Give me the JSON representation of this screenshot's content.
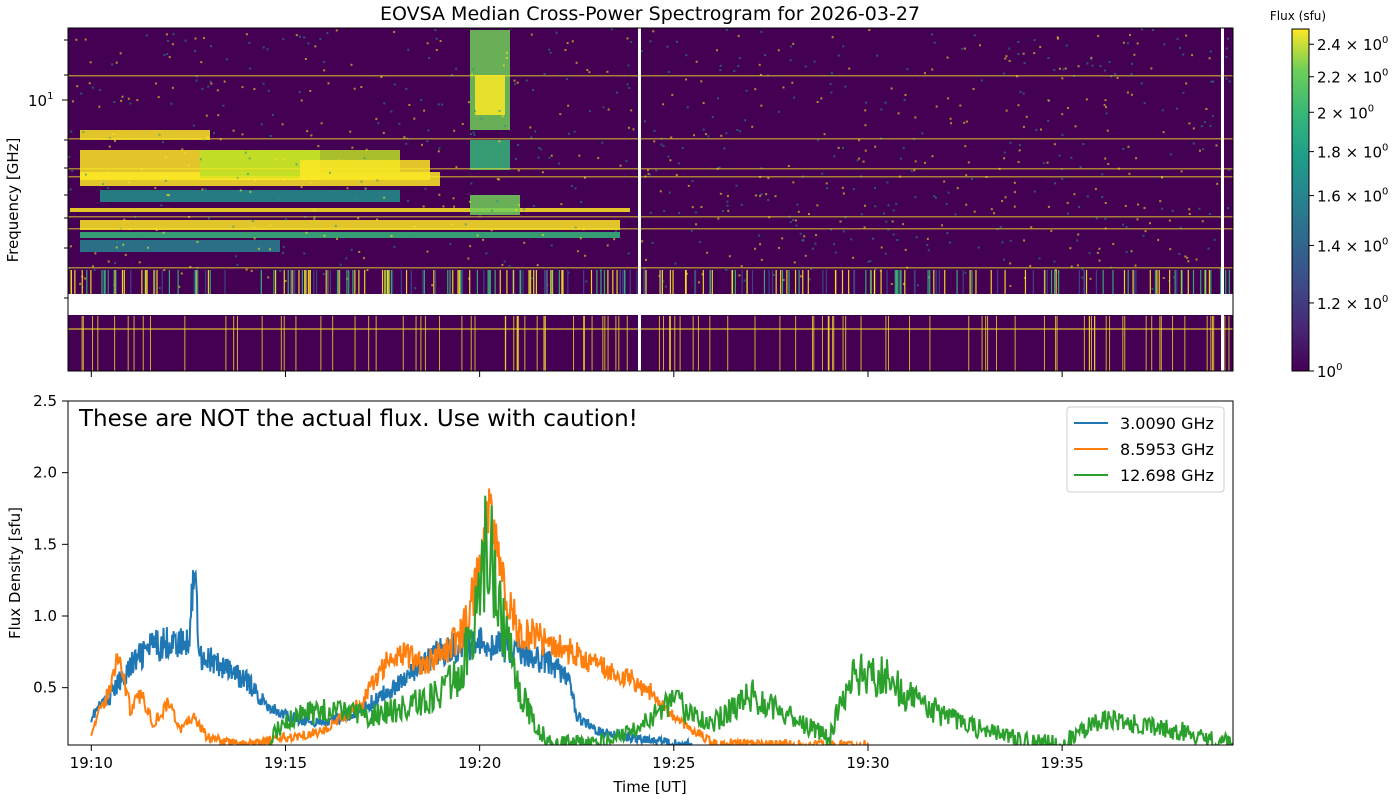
{
  "chart_data": [
    {
      "type": "heatmap",
      "title": "EOVSA Median Cross-Power Spectrogram for 2026-03-27",
      "xlabel": "",
      "ylabel": "Frequency [GHz]",
      "y_scale": "log",
      "y_tick_labels": [
        {
          "base": "10",
          "exp": "1",
          "value": 10
        }
      ],
      "x_ticks_unlabeled": [
        "19:10",
        "19:15",
        "19:20",
        "19:25",
        "19:30",
        "19:35"
      ],
      "colormap": "viridis",
      "colorbar": {
        "label": "Flux (sfu)",
        "scale": "log",
        "range": [
          1.0,
          2.5
        ],
        "ticks": [
          {
            "mant": "",
            "exp": "0",
            "value": 1.0
          },
          {
            "mant": "1.2",
            "exp": "0",
            "value": 1.2
          },
          {
            "mant": "1.4",
            "exp": "0",
            "value": 1.4
          },
          {
            "mant": "1.6",
            "exp": "0",
            "value": 1.6
          },
          {
            "mant": "1.8",
            "exp": "0",
            "value": 1.8
          },
          {
            "mant": "2",
            "exp": "0",
            "value": 2.0
          },
          {
            "mant": "2.2",
            "exp": "0",
            "value": 2.2
          },
          {
            "mant": "2.4",
            "exp": "0",
            "value": 2.4
          }
        ]
      }
    },
    {
      "type": "line",
      "xlabel": "Time [UT]",
      "ylabel": "Flux Density [sfu]",
      "annotation": "These are NOT the actual flux. Use with caution!",
      "x_tick_labels": [
        "19:10",
        "19:15",
        "19:20",
        "19:25",
        "19:30",
        "19:35"
      ],
      "x_range_minutes": [
        -0.6,
        29.4
      ],
      "ylim": [
        0.1,
        2.5
      ],
      "y_ticks": [
        "0.5",
        "1.0",
        "1.5",
        "2.0",
        "2.5"
      ],
      "legend_position": "top-right",
      "series": [
        {
          "name": "3.0090 GHz",
          "color": "#1f77b4",
          "t": [
            0,
            0.5,
            1,
            1.5,
            2,
            2.5,
            2.65,
            2.8,
            3,
            3.5,
            4,
            4.5,
            5,
            6,
            7,
            8,
            9,
            10,
            11,
            12,
            12.3,
            12.5,
            13,
            14,
            15,
            15.2,
            15.5
          ],
          "y": [
            0.3,
            0.45,
            0.65,
            0.78,
            0.82,
            0.8,
            1.36,
            0.72,
            0.7,
            0.62,
            0.55,
            0.38,
            0.3,
            0.25,
            0.35,
            0.55,
            0.75,
            0.82,
            0.75,
            0.65,
            0.55,
            0.3,
            0.2,
            0.15,
            0.12,
            0.1,
            0.1
          ]
        },
        {
          "name": "8.5953 GHz",
          "color": "#ff7f0e",
          "t": [
            0,
            0.5,
            0.7,
            1,
            1.3,
            1.6,
            2,
            2.3,
            2.6,
            3,
            3.5,
            4,
            5,
            6,
            7,
            7.5,
            8,
            8.5,
            9,
            9.5,
            10,
            10.2,
            10.4,
            10.6,
            10.8,
            11,
            11.5,
            12,
            12.5,
            13,
            13.5,
            14,
            14.5,
            15,
            15.5,
            16,
            17,
            18,
            20
          ],
          "y": [
            0.2,
            0.5,
            0.75,
            0.35,
            0.45,
            0.25,
            0.4,
            0.2,
            0.3,
            0.15,
            0.12,
            0.1,
            0.15,
            0.2,
            0.4,
            0.65,
            0.75,
            0.68,
            0.72,
            0.85,
            1.3,
            1.75,
            1.5,
            1.25,
            1.05,
            0.9,
            0.85,
            0.8,
            0.72,
            0.65,
            0.6,
            0.55,
            0.45,
            0.3,
            0.2,
            0.12,
            0.1,
            0.1,
            0.1
          ]
        },
        {
          "name": "12.698 GHz",
          "color": "#2ca02c",
          "t": [
            4.5,
            5,
            6,
            7,
            8,
            9,
            9.5,
            10,
            10.2,
            10.4,
            10.6,
            11,
            11.5,
            12,
            13,
            14,
            15,
            16,
            17,
            18,
            19,
            19.5,
            20,
            20.5,
            21,
            22,
            23,
            24,
            25,
            26,
            28,
            29.4
          ],
          "y": [
            0.1,
            0.28,
            0.35,
            0.3,
            0.35,
            0.45,
            0.6,
            1.1,
            1.6,
            1.3,
            0.95,
            0.5,
            0.2,
            0.1,
            0.1,
            0.2,
            0.4,
            0.25,
            0.45,
            0.3,
            0.15,
            0.55,
            0.6,
            0.55,
            0.45,
            0.3,
            0.2,
            0.12,
            0.1,
            0.28,
            0.2,
            0.1
          ]
        }
      ]
    }
  ]
}
